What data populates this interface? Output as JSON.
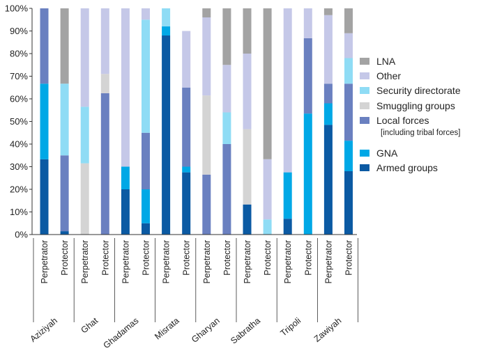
{
  "chart_data": {
    "type": "bar",
    "stacked": true,
    "ylim": [
      0,
      100
    ],
    "y_ticks": [
      "0%",
      "10%",
      "20%",
      "30%",
      "40%",
      "50%",
      "60%",
      "70%",
      "80%",
      "90%",
      "100%"
    ],
    "grid": false,
    "legend_position": "right",
    "groups": [
      "Aziziyah",
      "Ghat",
      "Ghadamas",
      "Misrata",
      "Gharyan",
      "Sabratha",
      "Tripoli",
      "Zawiyah"
    ],
    "bar_labels": [
      "Perpetrator",
      "Protector"
    ],
    "categories": [
      "Aziziyah Perpetrator",
      "Aziziyah Protector",
      "Ghat Perpetrator",
      "Ghat Protector",
      "Ghadamas Perpetrator",
      "Ghadamas Protector",
      "Misrata Perpetrator",
      "Misrata Protector",
      "Gharyan Perpetrator",
      "Gharyan Protector",
      "Sabratha Perpetrator",
      "Sabratha Protector",
      "Tripoli Perpetrator",
      "Tripoli Protector",
      "Zawiyah Perpetrator",
      "Zawiyah Protector"
    ],
    "series": [
      {
        "name": "Armed groups",
        "color": "#0b5aa3",
        "values": [
          33.3,
          1.5,
          0,
          0,
          20,
          5,
          88,
          27.5,
          0,
          0,
          13.3,
          0,
          7,
          0,
          48.5,
          28
        ]
      },
      {
        "name": "GNA",
        "color": "#00a8e6",
        "values": [
          33.4,
          0,
          0,
          0,
          10,
          15,
          4,
          2.5,
          0,
          0,
          0,
          0,
          20.5,
          53.5,
          9.5,
          13.5
        ]
      },
      {
        "name": "Local forces",
        "note": "[including tribal forces]",
        "color": "#6a80c0",
        "values": [
          33.3,
          33.5,
          0,
          62.5,
          0,
          25,
          0,
          35,
          26.5,
          40,
          0,
          0,
          0,
          33.3,
          8.7,
          25.2
        ]
      },
      {
        "name": "Smuggling groups",
        "color": "#d4d4d4",
        "values": [
          0,
          0,
          31.5,
          8.5,
          0,
          0,
          0,
          0,
          35,
          0,
          33.3,
          0,
          0,
          0,
          0,
          0
        ]
      },
      {
        "name": "Security directorate",
        "color": "#8fdcf5",
        "values": [
          0,
          31.7,
          25,
          0,
          0,
          50,
          8,
          0,
          0,
          14,
          0,
          6.7,
          0,
          0,
          0,
          11.3
        ]
      },
      {
        "name": "Other",
        "color": "#c5c8e8",
        "values": [
          0,
          0,
          43.5,
          29,
          70,
          5,
          0,
          25,
          34.5,
          21,
          33.4,
          26.6,
          72.5,
          13.2,
          30.3,
          11
        ]
      },
      {
        "name": "LNA",
        "color": "#a3a3a3",
        "values": [
          0,
          33.3,
          0,
          0,
          0,
          0,
          0,
          0,
          4,
          25,
          20,
          66.7,
          0,
          0,
          3,
          11
        ]
      }
    ],
    "legend_order": [
      "LNA",
      "Other",
      "Security directorate",
      "Smuggling groups",
      "Local forces",
      "GNA",
      "Armed groups"
    ]
  }
}
